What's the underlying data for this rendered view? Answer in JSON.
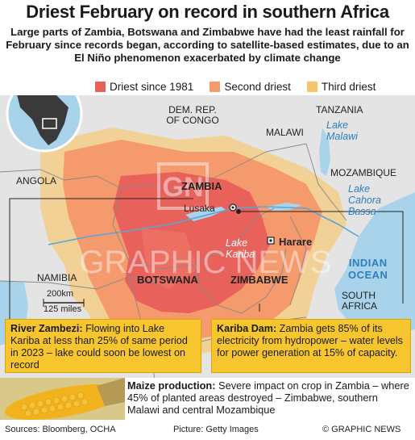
{
  "title": "Driest February on record in southern Africa",
  "subtitle": "Large parts of Zambia, Botswana and Zimbabwe have had the least rainfall for February since records began, according to satellite-based estimates, due to an El Niño phenomenon exacerbated by climate change",
  "legend": [
    {
      "label": "Driest since 1981",
      "color": "#e8615b"
    },
    {
      "label": "Second driest",
      "color": "#f59a6c"
    },
    {
      "label": "Third driest",
      "color": "#f7c66b"
    }
  ],
  "countries": {
    "drc": "DEM. REP.\nOF CONGO",
    "tanzania": "TANZANIA",
    "malawi": "MALAWI",
    "angola": "ANGOLA",
    "zambia": "ZAMBIA",
    "mozambique": "MOZAMBIQUE",
    "namibia": "NAMIBIA",
    "botswana": "BOTSWANA",
    "zimbabwe": "ZIMBABWE",
    "south_africa": "SOUTH\nAFRICA"
  },
  "cities": {
    "lusaka": "Lusaka",
    "harare": "Harare"
  },
  "water": {
    "lake_malawi": "Lake\nMalawi",
    "lake_cahora_bassa": "Lake\nCahora\nBassa",
    "lake_kariba": "Lake\nKariba",
    "indian_ocean": "INDIAN\nOCEAN"
  },
  "scale": {
    "km": "200km",
    "miles": "125 miles"
  },
  "watermark": "GRAPHIC NEWS",
  "watermark_logo": "GN",
  "boxes": {
    "zambezi_title": "River Zambezi:",
    "zambezi_text": " Flowing into Lake Kariba at less than 25% of same period in 2023 – lake could soon be lowest on record",
    "kariba_title": "Kariba Dam:",
    "kariba_text": " Zambia gets 85% of its electricity from hydropower – water levels for power generation at 15% of capacity.",
    "maize_title": "Maize production:",
    "maize_text": " Severe impact on crop in Zambia – where 45% of planted areas destroyed – Zimbabwe, southern Malawi and central Mozambique"
  },
  "footer": {
    "sources": "Sources: Bloomberg, OCHA",
    "picture": "Picture: Getty Images",
    "credit": "© GRAPHIC NEWS"
  },
  "colors": {
    "land": "#e4e4e4",
    "sea": "#a9d3ea",
    "river": "#5aa6d6"
  }
}
